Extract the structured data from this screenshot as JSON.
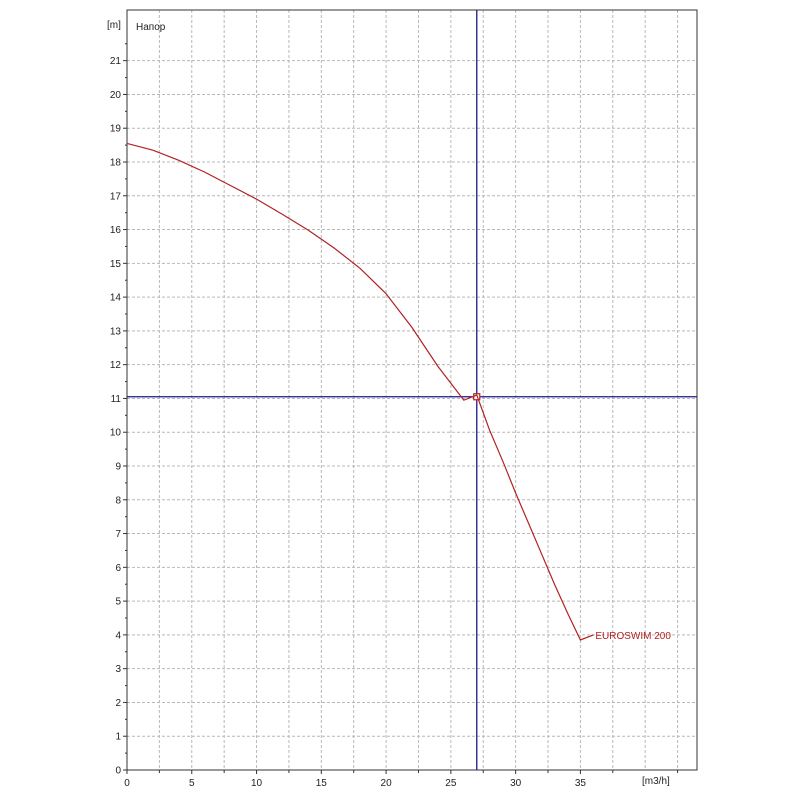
{
  "chart_data": {
    "type": "line",
    "title": "Напор",
    "xlabel": "[m3/h]",
    "ylabel": "[m]",
    "xlim": [
      0,
      44
    ],
    "ylim": [
      0,
      22.5
    ],
    "x_ticks": [
      0,
      5,
      10,
      15,
      20,
      25,
      30,
      35
    ],
    "y_ticks": [
      0,
      1,
      2,
      3,
      4,
      5,
      6,
      7,
      8,
      9,
      10,
      11,
      12,
      13,
      14,
      15,
      16,
      17,
      18,
      19,
      20,
      21
    ],
    "grid": true,
    "series": [
      {
        "name": "EUROSWIM 200",
        "color": "#b22222",
        "x": [
          0,
          2,
          4,
          6,
          8,
          10,
          12,
          14,
          16,
          18,
          20,
          22,
          24,
          25,
          26,
          27,
          28,
          29,
          30,
          31,
          32,
          33,
          34,
          35,
          36
        ],
        "y": [
          18.55,
          18.35,
          18.05,
          17.7,
          17.3,
          16.9,
          16.45,
          15.98,
          15.45,
          14.85,
          14.1,
          13.1,
          11.95,
          11.45,
          10.95,
          11.1,
          10.05,
          9.15,
          8.2,
          7.3,
          6.4,
          5.5,
          4.65,
          3.85,
          4.0
        ]
      }
    ],
    "operating_point": {
      "x": 27.0,
      "y": 11.05
    },
    "crosshair_color": "#1a1a8c"
  }
}
